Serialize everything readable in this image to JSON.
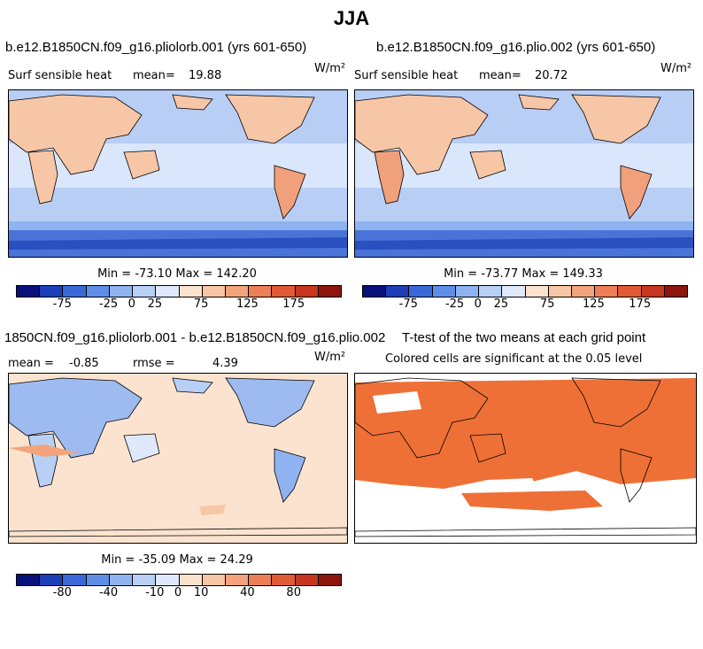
{
  "figure_title": "JJA",
  "units_label": "W/m²",
  "panels": {
    "top_left": {
      "title": "b.e12.B1850CN.f09_g16.pliolorb.001 (yrs 601-650)",
      "variable": "Surf sensible heat",
      "mean_label": "mean=",
      "mean_value": "19.88",
      "min_max": "Min = -73.10 Max = 142.20"
    },
    "top_right": {
      "title": "b.e12.B1850CN.f09_g16.plio.002 (yrs 601-650)",
      "variable": "Surf sensible heat",
      "mean_label": "mean=",
      "mean_value": "20.72",
      "min_max": "Min = -73.77 Max = 149.33"
    },
    "bottom_left": {
      "title": "1850CN.f09_g16.pliolorb.001 - b.e12.B1850CN.f09_g16.plio.002",
      "mean_label": "mean =",
      "mean_value": "-0.85",
      "rmse_label": "rmse =",
      "rmse_value": "4.39",
      "min_max": "Min = -35.09 Max = 24.29"
    },
    "bottom_right": {
      "title": "T-test of the two means at each grid point",
      "subtitle": "Colored cells are significant at the 0.05 level"
    }
  },
  "colorbars": {
    "absolute": {
      "colors": [
        "#08107a",
        "#1c3fb8",
        "#3a68d8",
        "#5f8ee6",
        "#8fb3f0",
        "#b8d0f6",
        "#dfe9fb",
        "#fbe2cf",
        "#f7c6a4",
        "#f3a47c",
        "#ec7f55",
        "#df5a35",
        "#c7361e",
        "#8e150c"
      ],
      "tick_labels": [
        "-75",
        "-25",
        "0",
        "25",
        "75",
        "125",
        "175"
      ],
      "tick_positions": [
        2,
        4,
        5,
        6,
        8,
        10,
        12
      ]
    },
    "difference": {
      "colors": [
        "#08107a",
        "#1c3fb8",
        "#3a68d8",
        "#5f8ee6",
        "#8fb3f0",
        "#b8d0f6",
        "#dfe9fb",
        "#fbe2cf",
        "#f7c6a4",
        "#f3a47c",
        "#ec7f55",
        "#df5a35",
        "#c7361e",
        "#8e150c"
      ],
      "tick_labels": [
        "-80",
        "-40",
        "-10",
        "0",
        "10",
        "40",
        "80"
      ],
      "tick_positions": [
        2,
        4,
        6,
        7,
        8,
        10,
        12
      ]
    }
  },
  "colors": {
    "ocean_mean": "#b9cef5",
    "ocean_light": "#d9e6fb",
    "land_warm": "#f6c6a6",
    "land_hot": "#f0a07a",
    "polar_cold": "#4a73d8",
    "diff_bg": "#fbe3cf",
    "diff_blue": "#9dbbf0",
    "signif": "#ee7037"
  }
}
